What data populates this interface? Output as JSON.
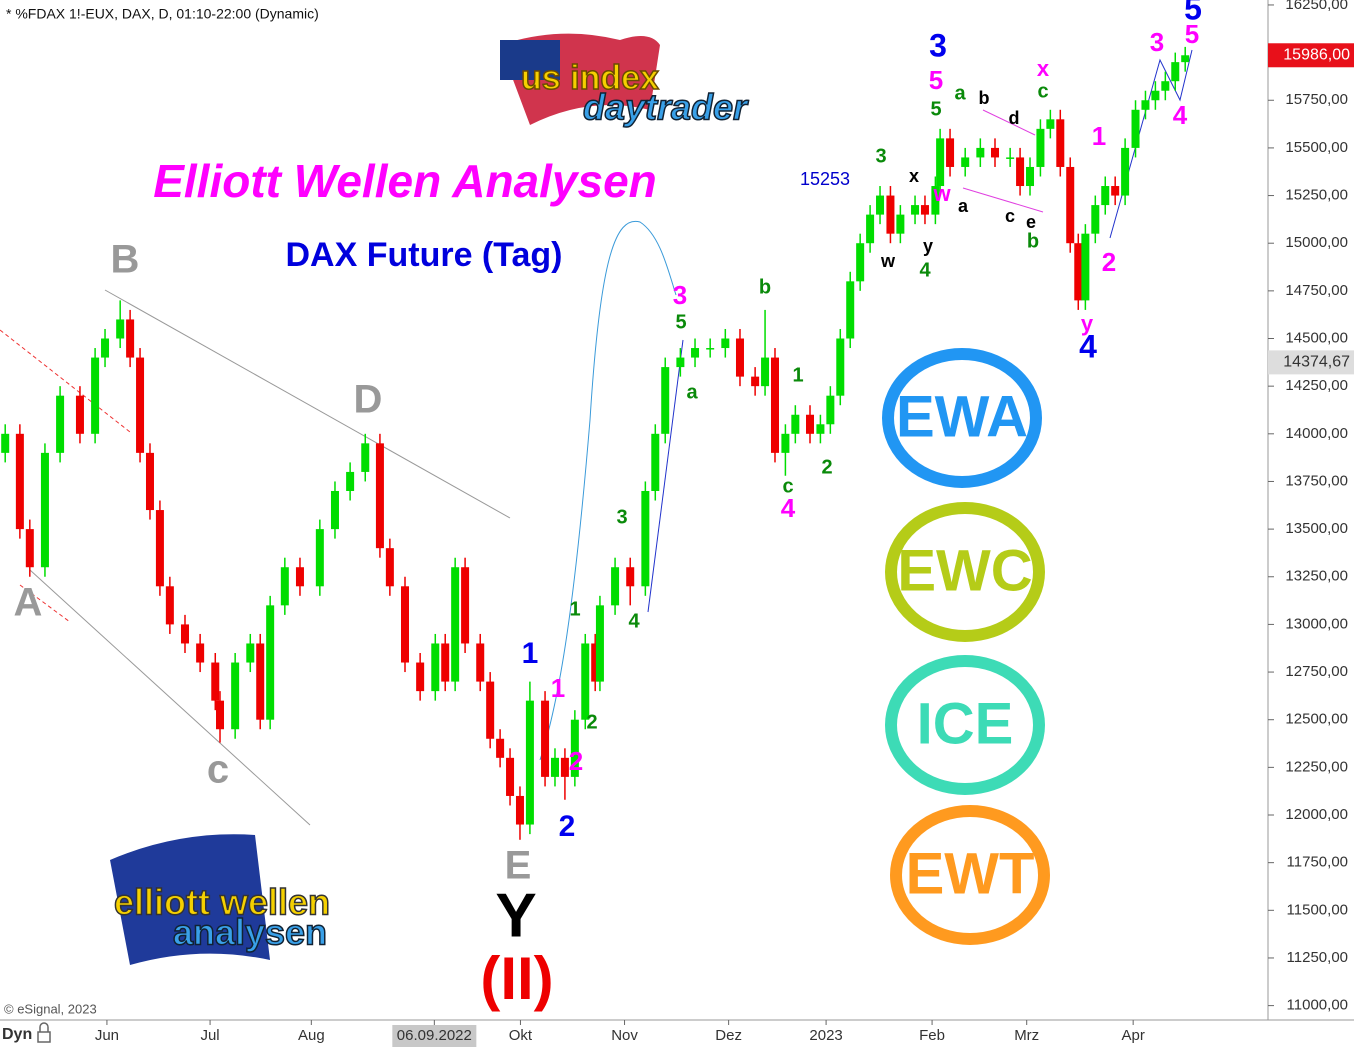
{
  "chart_data": {
    "type": "candlestick",
    "header": "* %FDAX 1!-EUX, DAX, D, 01:10-22:00 (Dynamic)",
    "title": "Elliott Wellen Analysen",
    "subtitle": "DAX Future (Tag)",
    "copyright": "© eSignal, 2023",
    "range_label": "Dyn",
    "up_color": "#00dd00",
    "down_color": "#ee0000",
    "x": [
      1.1,
      4.2,
      6.3,
      9.5,
      12.7,
      16.9,
      20.1,
      22.2,
      25.4,
      27.5,
      29.6,
      31.7,
      33.8,
      35.9,
      39.1,
      42.3,
      45.5,
      46.5,
      49.7,
      52.9,
      55.0,
      57.1,
      60.2,
      63.4,
      67.6,
      70.8,
      74.0,
      77.2,
      80.3,
      82.4,
      85.6,
      88.8,
      92.0,
      94.1,
      96.2,
      98.3,
      101.5,
      103.6,
      105.7,
      107.8,
      109.9,
      112.0,
      115.2,
      117.3,
      119.4,
      121.5,
      123.7,
      125.8,
      126.8,
      130.0,
      133.2,
      136.4,
      138.5,
      140.6,
      143.8,
      146.9,
      150.1,
      153.3,
      156.4,
      159.6,
      161.7,
      163.8,
      166.0,
      168.1,
      171.2,
      173.4,
      175.5,
      177.6,
      179.7,
      181.8,
      183.9,
      186.0,
      188.2,
      190.3,
      193.4,
      195.5,
      197.7,
      198.7,
      200.8,
      204.0,
      207.2,
      210.3,
      213.5,
      215.6,
      217.7,
      219.9,
      222.0,
      224.1,
      226.2,
      227.9,
      229.4,
      231.5,
      233.6,
      235.7,
      237.8,
      240.0,
      242.1,
      244.2,
      246.3,
      248.4,
      250.5
    ],
    "open": [
      13900,
      14000,
      13500,
      13300,
      13900,
      14200,
      14000,
      14400,
      14500,
      14600,
      14400,
      13900,
      13600,
      13200,
      13000,
      12900,
      12800,
      12600,
      12450,
      12800,
      12900,
      12500,
      13100,
      13300,
      13200,
      13500,
      13700,
      13800,
      13950,
      13400,
      13200,
      12800,
      12650,
      12900,
      12700,
      13300,
      12900,
      12700,
      12400,
      12300,
      12100,
      11950,
      12600,
      12200,
      12300,
      12200,
      12500,
      12900,
      12700,
      13100,
      13300,
      13200,
      13700,
      14000,
      14350,
      14400,
      14450,
      14450,
      14500,
      14300,
      14250,
      14400,
      13900,
      14000,
      14100,
      14000,
      14050,
      14200,
      14500,
      14800,
      15000,
      15150,
      15250,
      15050,
      15150,
      15200,
      15150,
      15300,
      15550,
      15400,
      15450,
      15500,
      15450,
      15450,
      15300,
      15400,
      15600,
      15650,
      15400,
      15000,
      14700,
      15050,
      15200,
      15300,
      15250,
      15500,
      15700,
      15750,
      15800,
      15850,
      15950
    ],
    "high": [
      14050,
      14050,
      13550,
      13950,
      14250,
      14250,
      14450,
      14550,
      14700,
      14650,
      14450,
      13950,
      13650,
      13250,
      13050,
      12950,
      12850,
      12650,
      12850,
      12950,
      12950,
      13150,
      13350,
      13350,
      13550,
      13750,
      13850,
      14000,
      14000,
      13450,
      13250,
      12850,
      12950,
      12950,
      13350,
      13350,
      12950,
      12750,
      12450,
      12350,
      12150,
      12700,
      12650,
      12350,
      12350,
      12550,
      12950,
      12950,
      13150,
      13350,
      13350,
      13750,
      14050,
      14400,
      14450,
      14500,
      14500,
      14550,
      14550,
      14350,
      14650,
      14450,
      14050,
      14150,
      14150,
      14100,
      14250,
      14550,
      14850,
      15050,
      15200,
      15300,
      15300,
      15200,
      15250,
      15250,
      15350,
      15600,
      15600,
      15500,
      15550,
      15550,
      15500,
      15500,
      15450,
      15650,
      15700,
      15700,
      15450,
      15050,
      15100,
      15250,
      15350,
      15350,
      15550,
      15750,
      15800,
      15850,
      15900,
      16000,
      16030
    ],
    "low": [
      13850,
      13450,
      13250,
      13250,
      13850,
      13950,
      13950,
      14350,
      14450,
      14350,
      13850,
      13550,
      13150,
      12950,
      12850,
      12750,
      12550,
      12380,
      12400,
      12750,
      12450,
      12450,
      13050,
      13150,
      13150,
      13450,
      13650,
      13750,
      13350,
      13150,
      12750,
      12600,
      12600,
      12650,
      12650,
      12850,
      12650,
      12350,
      12250,
      12050,
      11870,
      11900,
      12150,
      12150,
      12080,
      12150,
      12450,
      12650,
      12650,
      13050,
      13100,
      13150,
      13650,
      13950,
      14300,
      14350,
      14400,
      14400,
      14250,
      14200,
      14200,
      13850,
      13780,
      13950,
      13950,
      13950,
      14000,
      14150,
      14450,
      14750,
      14950,
      15100,
      15000,
      15000,
      15100,
      15100,
      15100,
      15250,
      15350,
      15350,
      15400,
      15400,
      15400,
      15250,
      15250,
      15350,
      15550,
      15350,
      14950,
      14650,
      14650,
      15000,
      15150,
      15200,
      15200,
      15450,
      15650,
      15700,
      15750,
      15800,
      15900
    ],
    "close": [
      14000,
      13500,
      13300,
      13900,
      14200,
      14000,
      14400,
      14500,
      14600,
      14400,
      13900,
      13600,
      13200,
      13000,
      12900,
      12800,
      12600,
      12450,
      12800,
      12900,
      12500,
      13100,
      13300,
      13200,
      13500,
      13700,
      13800,
      13950,
      13400,
      13200,
      12800,
      12650,
      12900,
      12700,
      13300,
      12900,
      12700,
      12400,
      12300,
      12100,
      11950,
      12600,
      12200,
      12300,
      12200,
      12500,
      12900,
      12700,
      13100,
      13300,
      13200,
      13700,
      14000,
      14350,
      14400,
      14450,
      14450,
      14500,
      14300,
      14250,
      14400,
      13900,
      14000,
      14100,
      14000,
      14050,
      14200,
      14500,
      14800,
      15000,
      15150,
      15250,
      15050,
      15150,
      15200,
      15150,
      15300,
      15550,
      15400,
      15450,
      15500,
      15450,
      15450,
      15300,
      15400,
      15600,
      15650,
      15400,
      15000,
      14700,
      15050,
      15200,
      15300,
      15250,
      15500,
      15700,
      15750,
      15800,
      15850,
      15950,
      15986
    ],
    "xlim": [
      0,
      268
    ],
    "xticks": [
      {
        "value": 22.6,
        "label": "Jun"
      },
      {
        "value": 44.4,
        "label": "Jul"
      },
      {
        "value": 65.8,
        "label": "Aug"
      },
      {
        "value": 91.8,
        "label": "06.09.2022"
      },
      {
        "value": 110,
        "label": "Okt"
      },
      {
        "value": 132,
        "label": "Nov"
      },
      {
        "value": 154,
        "label": "Dez"
      },
      {
        "value": 174.6,
        "label": "2023"
      },
      {
        "value": 197,
        "label": "Feb"
      },
      {
        "value": 217,
        "label": "Mrz"
      },
      {
        "value": 239.5,
        "label": "Apr"
      }
    ],
    "ylim": [
      10935,
      16276
    ],
    "yticks": [
      {
        "value": 11000,
        "label": "11000,00"
      },
      {
        "value": 11250,
        "label": "11250,00"
      },
      {
        "value": 11500,
        "label": "11500,00"
      },
      {
        "value": 11750,
        "label": "11750,00"
      },
      {
        "value": 12000,
        "label": "12000,00"
      },
      {
        "value": 12250,
        "label": "12250,00"
      },
      {
        "value": 12500,
        "label": "12500,00"
      },
      {
        "value": 12750,
        "label": "12750,00"
      },
      {
        "value": 13000,
        "label": "13000,00"
      },
      {
        "value": 13250,
        "label": "13250,00"
      },
      {
        "value": 13500,
        "label": "13500,00"
      },
      {
        "value": 13750,
        "label": "13750,00"
      },
      {
        "value": 14000,
        "label": "14000,00"
      },
      {
        "value": 14250,
        "label": "14250,00"
      },
      {
        "value": 14500,
        "label": "14500,00"
      },
      {
        "value": 14750,
        "label": "14750,00"
      },
      {
        "value": 15000,
        "label": "15000,00"
      },
      {
        "value": 15250,
        "label": "15250,00"
      },
      {
        "value": 15500,
        "label": "15500,00"
      },
      {
        "value": 15750,
        "label": "15750,00"
      },
      {
        "value": 16000,
        "label": "16000,00"
      },
      {
        "value": 16250,
        "label": "16250,00"
      }
    ],
    "last_price": {
      "value": 15986,
      "label": "15986,00"
    },
    "cursor_price": {
      "value": 14374.67,
      "label": "14374,67"
    },
    "annotations": [
      {
        "text": "B",
        "color": "#999999"
      },
      {
        "text": "A",
        "color": "#999999"
      },
      {
        "text": "c",
        "color": "#999999"
      },
      {
        "text": "D",
        "color": "#999999"
      },
      {
        "text": "E",
        "color": "#999999"
      },
      {
        "text": "Y",
        "color": "#000000"
      },
      {
        "text": "(II)",
        "color": "#ee0000"
      },
      {
        "text": "1",
        "color": "#0000ee"
      },
      {
        "text": "2",
        "color": "#0000ee"
      },
      {
        "text": "1",
        "color": "#ff00ff"
      },
      {
        "text": "2",
        "color": "#ff00ff"
      },
      {
        "text": "1",
        "color": "#0a8a0a"
      },
      {
        "text": "2",
        "color": "#0a8a0a"
      },
      {
        "text": "3",
        "color": "#0a8a0a"
      },
      {
        "text": "4",
        "color": "#0a8a0a"
      },
      {
        "text": "5",
        "color": "#0a8a0a"
      },
      {
        "text": "3",
        "color": "#ff00ff"
      },
      {
        "text": "a",
        "color": "#0a8a0a"
      },
      {
        "text": "b",
        "color": "#0a8a0a"
      },
      {
        "text": "1",
        "color": "#0a8a0a"
      },
      {
        "text": "2",
        "color": "#0a8a0a"
      },
      {
        "text": "c",
        "color": "#0a8a0a"
      },
      {
        "text": "4",
        "color": "#ff00ff"
      },
      {
        "text": "15253",
        "color": "#0000cc"
      },
      {
        "text": "3",
        "color": "#0a8a0a"
      },
      {
        "text": "x",
        "color": "#000000"
      },
      {
        "text": "y",
        "color": "#000000"
      },
      {
        "text": "w",
        "color": "#000000"
      },
      {
        "text": "4",
        "color": "#0a8a0a"
      },
      {
        "text": "w",
        "color": "#ff00ff"
      },
      {
        "text": "a",
        "color": "#000000"
      },
      {
        "text": "3",
        "color": "#0000ee"
      },
      {
        "text": "5",
        "color": "#ff00ff"
      },
      {
        "text": "5",
        "color": "#0a8a0a"
      },
      {
        "text": "a",
        "color": "#0a8a0a"
      },
      {
        "text": "b",
        "color": "#000000"
      },
      {
        "text": "d",
        "color": "#000000"
      },
      {
        "text": "c",
        "color": "#000000"
      },
      {
        "text": "e",
        "color": "#000000"
      },
      {
        "text": "b",
        "color": "#0a8a0a"
      },
      {
        "text": "x",
        "color": "#ff00ff"
      },
      {
        "text": "c",
        "color": "#0a8a0a"
      },
      {
        "text": "1",
        "color": "#ff00ff"
      },
      {
        "text": "2",
        "color": "#ff00ff"
      },
      {
        "text": "y",
        "color": "#ff00ff"
      },
      {
        "text": "4",
        "color": "#0000ee"
      },
      {
        "text": "3",
        "color": "#ff00ff"
      },
      {
        "text": "5",
        "color": "#0000ee"
      },
      {
        "text": "5",
        "color": "#ff00ff"
      },
      {
        "text": "4",
        "color": "#ff00ff"
      }
    ],
    "logos": {
      "us_index": "us index",
      "daytrader": "daytrader",
      "elliott": "elliott wellen",
      "analysen": "analysen",
      "badges": [
        {
          "text": "EWA",
          "color": "#2196f3"
        },
        {
          "text": "EWC",
          "color": "#b5cc18"
        },
        {
          "text": "ICE",
          "color": "#3ddbb6"
        },
        {
          "text": "EWT",
          "color": "#ff9a1f"
        }
      ]
    }
  }
}
